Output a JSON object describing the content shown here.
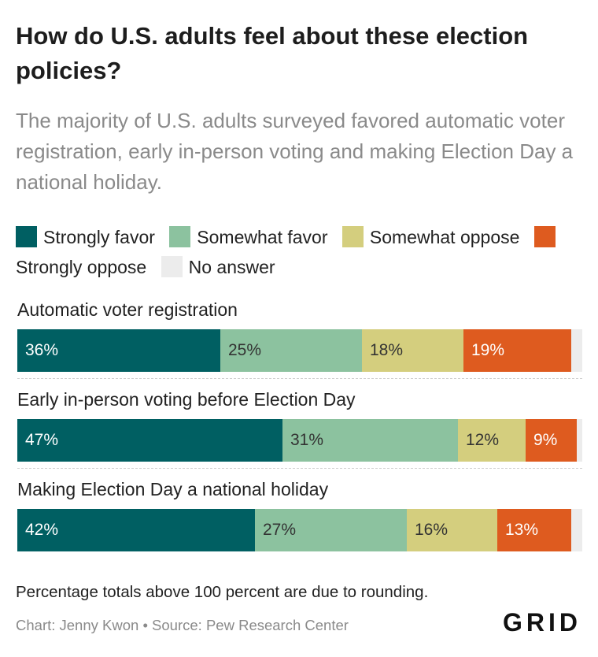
{
  "header": {
    "title": "How do U.S. adults feel about these election policies?",
    "subtitle": "The majority of U.S. adults surveyed favored automatic voter registration, early in-person voting and making Election Day a national holiday."
  },
  "legend": [
    {
      "label": "Strongly favor",
      "color": "#005f62"
    },
    {
      "label": "Somewhat favor",
      "color": "#8cc29f"
    },
    {
      "label": "Somewhat oppose",
      "color": "#d4ce7e"
    },
    {
      "label": "Strongly oppose",
      "color": "#de5b1f"
    },
    {
      "label": "No answer",
      "color": "#ececec"
    }
  ],
  "chart_data": {
    "type": "bar",
    "orientation": "horizontal",
    "stacked": true,
    "xlim": [
      0,
      100
    ],
    "unit": "%",
    "categories": [
      "Automatic voter registration",
      "Early in-person voting before Election Day",
      "Making Election Day a national holiday"
    ],
    "series": [
      {
        "name": "Strongly favor",
        "color": "#005f62",
        "label_color": "#ffffff",
        "values": [
          36,
          47,
          42
        ]
      },
      {
        "name": "Somewhat favor",
        "color": "#8cc29f",
        "label_color": "#333333",
        "values": [
          25,
          31,
          27
        ]
      },
      {
        "name": "Somewhat oppose",
        "color": "#d4ce7e",
        "label_color": "#333333",
        "values": [
          18,
          12,
          16
        ]
      },
      {
        "name": "Strongly oppose",
        "color": "#de5b1f",
        "label_color": "#ffffff",
        "values": [
          19,
          9,
          13
        ]
      },
      {
        "name": "No answer",
        "color": "#ececec",
        "label_color": "#333333",
        "values": [
          2,
          1,
          2
        ]
      }
    ],
    "data_labels": [
      [
        "36%",
        "25%",
        "18%",
        "19%",
        ""
      ],
      [
        "47%",
        "31%",
        "12%",
        "9%",
        ""
      ],
      [
        "42%",
        "27%",
        "16%",
        "13%",
        ""
      ]
    ]
  },
  "footer": {
    "note": "Percentage totals above 100 percent are due to rounding.",
    "credit": "Chart: Jenny Kwon • Source: Pew Research Center",
    "logo": "GRID"
  }
}
